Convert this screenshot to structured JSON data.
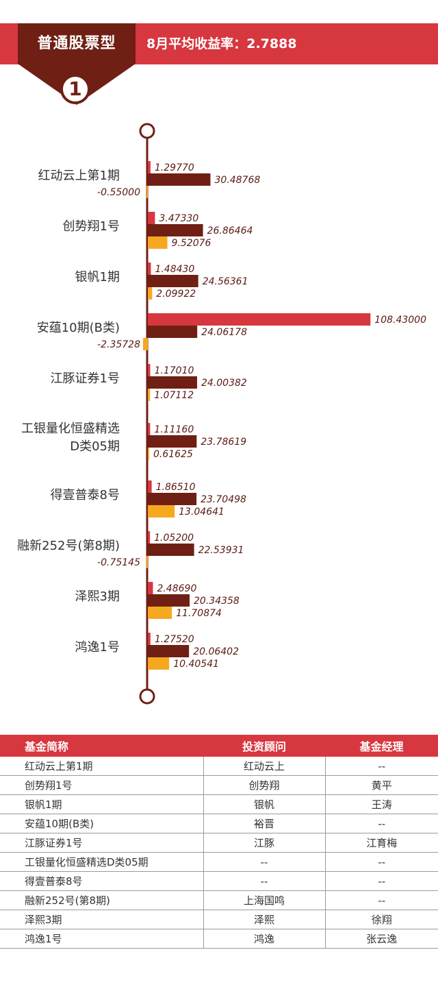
{
  "header": {
    "category": "普通股票型",
    "badge": "1",
    "avg_return_label": "8月平均收益率：2.7888"
  },
  "colors": {
    "series1": "#d7373f",
    "series2": "#6f1f14",
    "series3": "#f6a821",
    "axis": "#6f1f14"
  },
  "chart_data": {
    "type": "bar",
    "orientation": "horizontal",
    "categories": [
      "红动云上第1期",
      "创势翔1号",
      "银帆1期",
      "安蕴10期(B类)",
      "江豚证券1号",
      "工银量化恒盛精选D类05期",
      "得壹普泰8号",
      "融新252号(第8期)",
      "泽熙3期",
      "鸿逸1号"
    ],
    "category_lines": [
      [
        "红动云上第1期"
      ],
      [
        "创势翔1号"
      ],
      [
        "银帆1期"
      ],
      [
        "安蕴10期(B类)"
      ],
      [
        "江豚证券1号"
      ],
      [
        "工银量化恒盛精选",
        "D类05期"
      ],
      [
        "得壹普泰8号"
      ],
      [
        "融新252号(第8期)"
      ],
      [
        "泽熙3期"
      ],
      [
        "鸿逸1号"
      ]
    ],
    "series": [
      {
        "values": [
          1.2977,
          3.4733,
          1.4843,
          108.43,
          1.1701,
          1.1116,
          1.8651,
          1.052,
          2.4869,
          1.2752
        ],
        "labels": [
          "1.29770",
          "3.47330",
          "1.48430",
          "108.43000",
          "1.17010",
          "1.11160",
          "1.86510",
          "1.05200",
          "2.48690",
          "1.27520"
        ]
      },
      {
        "values": [
          30.48768,
          26.86464,
          24.56361,
          24.06178,
          24.00382,
          23.78619,
          23.70498,
          22.53931,
          20.34358,
          20.06402
        ],
        "labels": [
          "30.48768",
          "26.86464",
          "24.56361",
          "24.06178",
          "24.00382",
          "23.78619",
          "23.70498",
          "22.53931",
          "20.34358",
          "20.06402"
        ]
      },
      {
        "values": [
          -0.55,
          9.52076,
          2.09922,
          -2.35728,
          1.07112,
          0.61625,
          13.04641,
          -0.75145,
          11.70874,
          10.40541
        ],
        "labels": [
          "-0.55000",
          "9.52076",
          "2.09922",
          "-2.35728",
          "1.07112",
          "0.61625",
          "13.04641",
          "-0.75145",
          "11.70874",
          "10.40541"
        ]
      }
    ]
  },
  "table": {
    "headers": [
      "基金简称",
      "投资顾问",
      "基金经理"
    ],
    "rows": [
      [
        "红动云上第1期",
        "红动云上",
        "--"
      ],
      [
        "创势翔1号",
        "创势翔",
        "黄平"
      ],
      [
        "银帆1期",
        "银帆",
        "王涛"
      ],
      [
        "安蕴10期(B类)",
        "裕晋",
        "--"
      ],
      [
        "江豚证券1号",
        "江豚",
        "江育梅"
      ],
      [
        "工银量化恒盛精选D类05期",
        "--",
        "--"
      ],
      [
        "得壹普泰8号",
        "--",
        "--"
      ],
      [
        "融新252号(第8期)",
        "上海国鸣",
        "--"
      ],
      [
        "泽熙3期",
        "泽熙",
        "徐翔"
      ],
      [
        "鸿逸1号",
        "鸿逸",
        "张云逸"
      ]
    ]
  }
}
